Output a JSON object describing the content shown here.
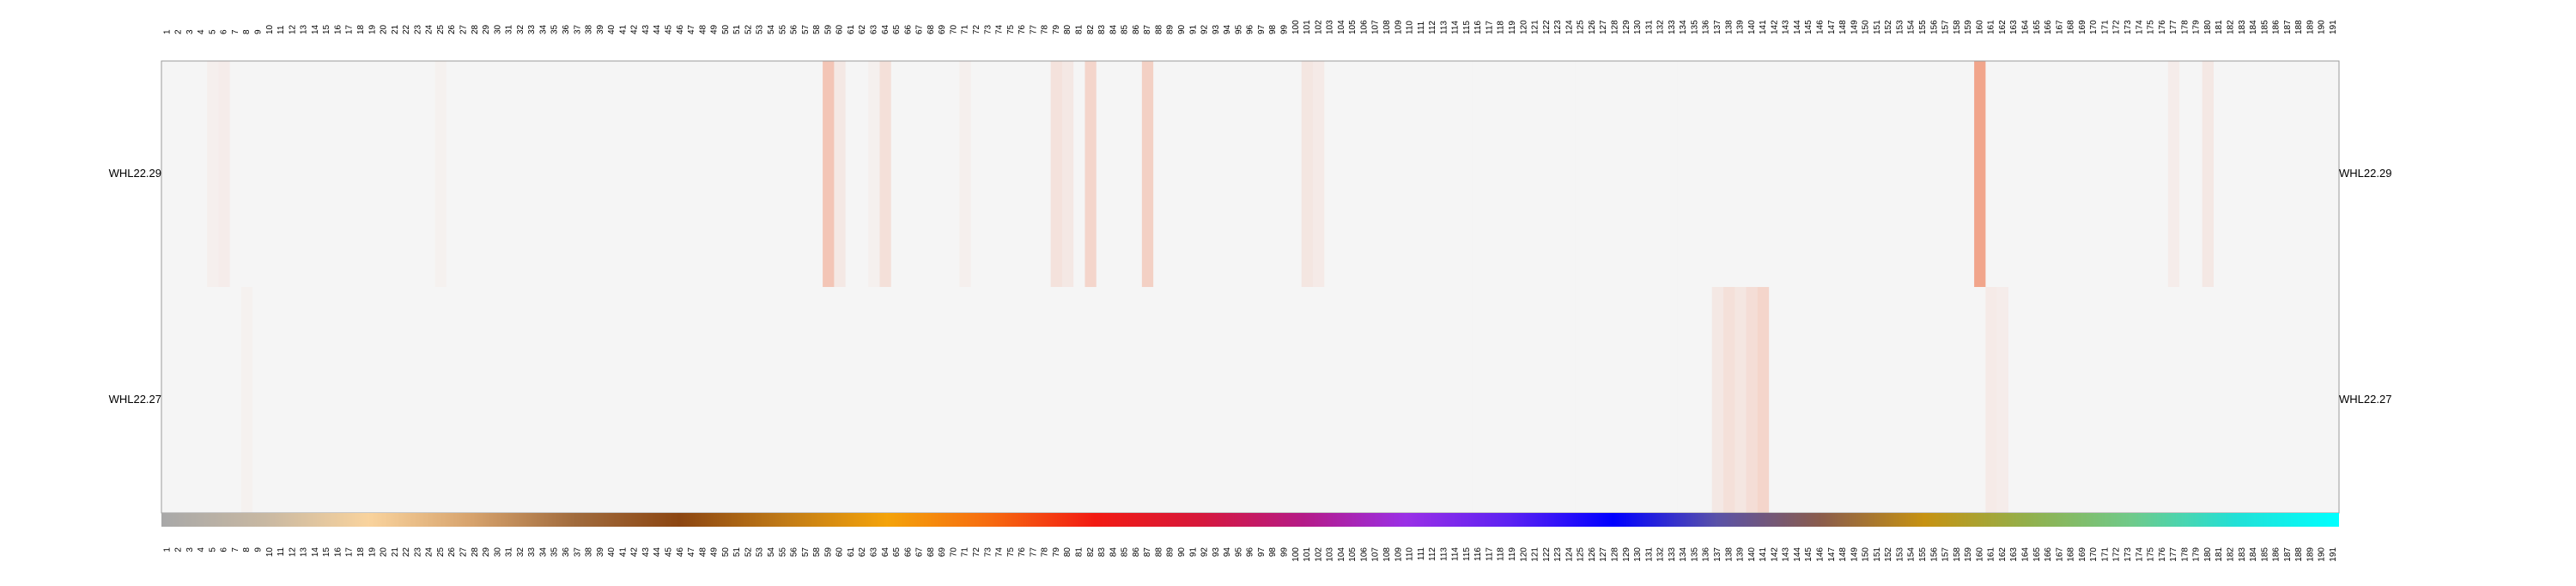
{
  "chart_data": {
    "type": "heatmap",
    "columns": [
      "1",
      "2",
      "3",
      "4",
      "5",
      "6",
      "7",
      "8",
      "9",
      "10",
      "11",
      "12",
      "13",
      "14",
      "15",
      "16",
      "17",
      "18",
      "19",
      "20",
      "21",
      "22",
      "23",
      "24",
      "25",
      "26",
      "27",
      "28",
      "29",
      "30",
      "31",
      "32",
      "33",
      "34",
      "35",
      "36",
      "37",
      "38",
      "39",
      "40",
      "41",
      "42",
      "43",
      "44",
      "45",
      "46",
      "47",
      "48",
      "49",
      "50",
      "51",
      "52",
      "53",
      "54",
      "55",
      "56",
      "57",
      "58",
      "59",
      "60",
      "61",
      "62",
      "63",
      "64",
      "65",
      "66",
      "67",
      "68",
      "69",
      "70",
      "71",
      "72",
      "73",
      "74",
      "75",
      "76",
      "77",
      "78",
      "79",
      "80",
      "81",
      "82",
      "83",
      "84",
      "85",
      "86",
      "87",
      "88",
      "89",
      "90",
      "91",
      "92",
      "93",
      "94",
      "95",
      "96",
      "97",
      "98",
      "99",
      "100",
      "101",
      "102",
      "103",
      "104",
      "105",
      "106",
      "107",
      "108",
      "109",
      "110",
      "111",
      "112",
      "113",
      "114",
      "115",
      "116",
      "117",
      "118",
      "119",
      "120",
      "121",
      "122",
      "123",
      "124",
      "125",
      "126",
      "127",
      "128",
      "129",
      "130",
      "131",
      "132",
      "133",
      "134",
      "135",
      "136",
      "137",
      "138",
      "139",
      "140",
      "141",
      "142",
      "143",
      "144",
      "145",
      "146",
      "147",
      "148",
      "149",
      "150",
      "151",
      "152",
      "153",
      "154",
      "155",
      "156",
      "157",
      "158",
      "159",
      "160",
      "161",
      "162",
      "163",
      "164",
      "165",
      "166",
      "167",
      "168",
      "169",
      "170",
      "171",
      "172",
      "173",
      "174",
      "175",
      "176",
      "177",
      "178",
      "179",
      "180",
      "181",
      "182",
      "183",
      "184",
      "185",
      "186",
      "187",
      "188",
      "189",
      "190",
      "191"
    ],
    "rows": [
      {
        "name": "WHL22.29",
        "base": 0.0,
        "cells": [
          [
            5,
            0.06
          ],
          [
            6,
            0.08
          ],
          [
            25,
            0.04
          ],
          [
            59,
            0.45
          ],
          [
            60,
            0.12
          ],
          [
            63,
            0.05
          ],
          [
            64,
            0.2
          ],
          [
            71,
            0.06
          ],
          [
            79,
            0.18
          ],
          [
            80,
            0.12
          ],
          [
            82,
            0.3
          ],
          [
            87,
            0.35
          ],
          [
            101,
            0.14
          ],
          [
            102,
            0.1
          ],
          [
            160,
            0.75
          ],
          [
            177,
            0.08
          ],
          [
            180,
            0.12
          ]
        ]
      },
      {
        "name": "WHL22.27",
        "base": 0.0,
        "cells": [
          [
            8,
            0.04
          ],
          [
            137,
            0.12
          ],
          [
            138,
            0.2
          ],
          [
            139,
            0.14
          ],
          [
            140,
            0.22
          ],
          [
            141,
            0.3
          ],
          [
            161,
            0.1
          ],
          [
            162,
            0.08
          ]
        ]
      }
    ],
    "heat_colors": {
      "low": "#f5f5f5",
      "high": "#f08a68"
    },
    "color_bar": [
      "#a8a8a8",
      "#c8b8a2",
      "#f9d39d",
      "#d6a26c",
      "#a06a3c",
      "#8c4612",
      "#c07a16",
      "#f4a30a",
      "#f66a10",
      "#f21a12",
      "#d7183a",
      "#b51a86",
      "#9a30e6",
      "#5c22f2",
      "#0000ff",
      "#5a52a8",
      "#8a5c4c",
      "#c69212",
      "#92b04c",
      "#6fca8a",
      "#22e0d6",
      "#00ffff"
    ]
  }
}
